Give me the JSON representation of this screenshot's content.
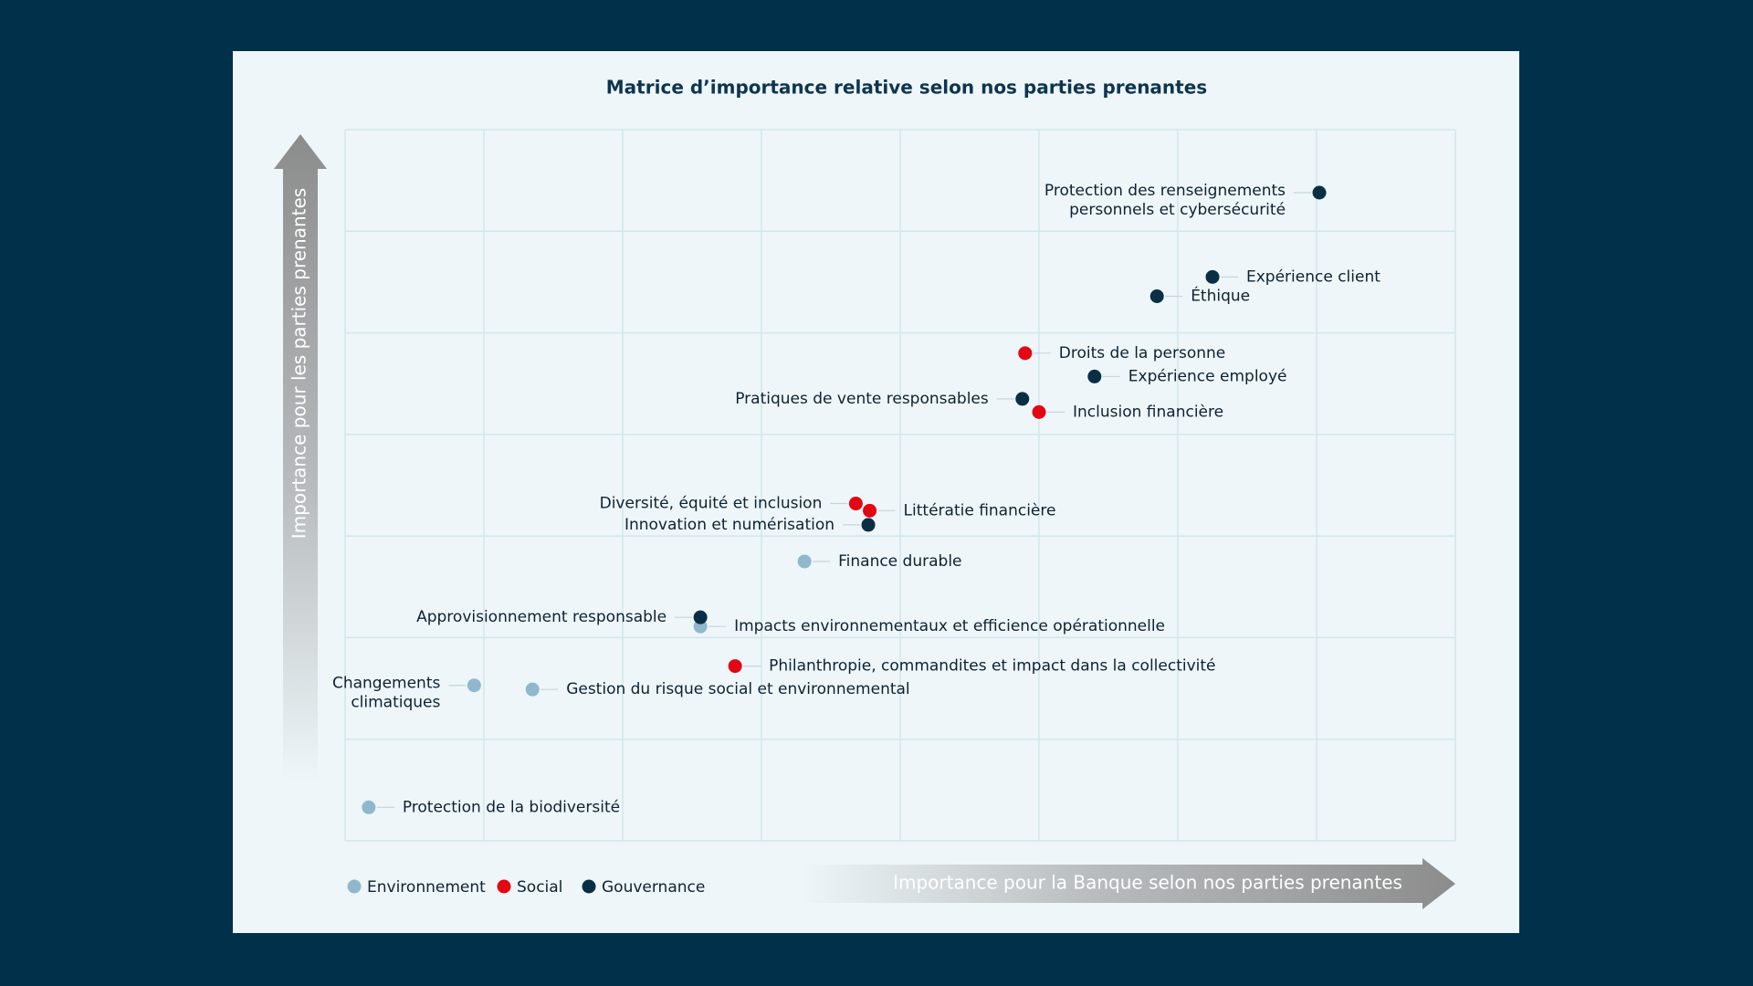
{
  "chart_data": {
    "type": "scatter",
    "title": "Matrice d’importance relative selon nos parties prenantes",
    "x_label": "Importance pour la Banque selon nos parties prenantes",
    "y_label": "Importance pour les parties prenantes",
    "xlim": [
      0,
      8
    ],
    "ylim": [
      0,
      7
    ],
    "xticks": [
      0,
      1,
      2,
      3,
      4,
      5,
      6,
      7,
      8
    ],
    "yticks": [
      0,
      1,
      2,
      3,
      4,
      5,
      6,
      7
    ],
    "grid": true,
    "series": [
      {
        "name": "Environnement",
        "color": "#8fb8cc",
        "labels": [
          "Finance durable",
          "Impacts environnementaux et efficience opérationnelle",
          [
            "Changements",
            "climatiques"
          ],
          "Gestion du risque social et environnemental",
          "Protection de la biodiversité"
        ],
        "x": [
          3.31,
          2.56,
          0.93,
          1.35,
          0.17
        ],
        "values": [
          2.75,
          2.11,
          1.53,
          1.49,
          0.33
        ]
      },
      {
        "name": "Social",
        "color": "#e30613",
        "labels": [
          "Droits de la personne",
          "Inclusion financière",
          "Diversité, équité et inclusion",
          "Littératie financière",
          "Philanthropie, commandites et impact dans la collectivité"
        ],
        "x": [
          4.9,
          5.0,
          3.68,
          3.78,
          2.81
        ],
        "values": [
          4.8,
          4.22,
          3.32,
          3.25,
          1.72
        ]
      },
      {
        "name": "Gouvernance",
        "color": "#0a2f45",
        "labels": [
          [
            "Protection des renseignements",
            "personnels et cybersécurité"
          ],
          "Expérience client",
          "Éthique",
          "Expérience employé",
          "Pratiques de vente responsables",
          "Innovation et numérisation",
          "Approvisionnement responsable"
        ],
        "x": [
          7.02,
          6.25,
          5.85,
          5.4,
          4.88,
          3.77,
          2.56
        ],
        "values": [
          6.38,
          5.55,
          5.36,
          4.57,
          4.35,
          3.11,
          2.2
        ]
      }
    ]
  }
}
